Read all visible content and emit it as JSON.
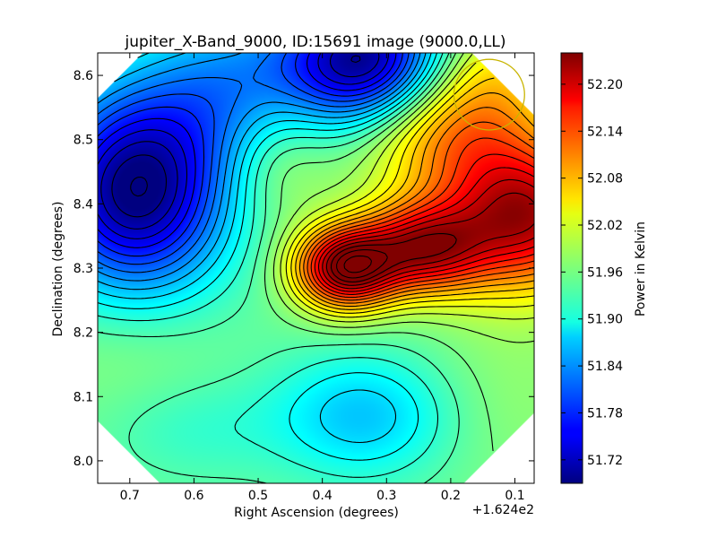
{
  "chart_data": {
    "type": "heatmap",
    "title": "jupiter_X-Band_9000, ID:15691 image (9000.0,LL)",
    "xlabel": "Right Ascension (degrees)",
    "ylabel": "Declination (degrees)",
    "x_offset_label": "+1.624e2",
    "xlim": [
      0.75,
      0.07
    ],
    "ylim": [
      7.965,
      8.635
    ],
    "x_ticks": [
      0.7,
      0.6,
      0.5,
      0.4,
      0.3,
      0.2,
      0.1
    ],
    "x_tick_labels": [
      "0.7",
      "0.6",
      "0.5",
      "0.4",
      "0.3",
      "0.2",
      "0.1"
    ],
    "y_ticks": [
      8.0,
      8.1,
      8.2,
      8.3,
      8.4,
      8.5,
      8.6
    ],
    "y_tick_labels": [
      "8.0",
      "8.1",
      "8.2",
      "8.3",
      "8.4",
      "8.5",
      "8.6"
    ],
    "colorbar": {
      "label": "Power in Kelvin",
      "colormap": "jet",
      "range": [
        51.69,
        52.24
      ],
      "ticks": [
        51.72,
        51.78,
        51.84,
        51.9,
        51.96,
        52.02,
        52.08,
        52.14,
        52.2
      ],
      "tick_labels": [
        "51.72",
        "51.78",
        "51.84",
        "51.90",
        "51.96",
        "52.02",
        "52.08",
        "52.14",
        "52.20"
      ]
    },
    "beam_circle": {
      "x": 0.14,
      "y": 8.57,
      "radius": 0.055,
      "color": "#c8b400"
    },
    "contour_interval": 0.02,
    "field_components": {
      "base": 51.955,
      "gaussians": [
        {
          "x": 0.365,
          "y": 8.3,
          "sx": 0.055,
          "sy": 0.045,
          "amp": 0.28
        },
        {
          "x": 0.245,
          "y": 8.33,
          "sx": 0.07,
          "sy": 0.05,
          "amp": 0.23
        },
        {
          "x": 0.08,
          "y": 8.38,
          "sx": 0.09,
          "sy": 0.08,
          "amp": 0.25
        },
        {
          "x": 0.2,
          "y": 8.52,
          "sx": 0.1,
          "sy": 0.08,
          "amp": 0.15
        },
        {
          "x": 0.13,
          "y": 8.62,
          "sx": 0.07,
          "sy": 0.06,
          "amp": 0.05
        },
        {
          "x": 0.69,
          "y": 8.42,
          "sx": 0.1,
          "sy": 0.11,
          "amp": -0.27
        },
        {
          "x": 0.33,
          "y": 8.62,
          "sx": 0.09,
          "sy": 0.07,
          "amp": -0.27
        },
        {
          "x": 0.54,
          "y": 8.58,
          "sx": 0.1,
          "sy": 0.09,
          "amp": -0.1
        },
        {
          "x": 0.47,
          "y": 8.47,
          "sx": 0.06,
          "sy": 0.07,
          "amp": 0.05
        },
        {
          "x": 0.335,
          "y": 8.07,
          "sx": 0.1,
          "sy": 0.07,
          "amp": -0.09
        },
        {
          "x": 0.6,
          "y": 8.05,
          "sx": 0.1,
          "sy": 0.06,
          "amp": -0.03
        },
        {
          "x": 0.7,
          "y": 8.17,
          "sx": 0.1,
          "sy": 0.07,
          "amp": 0.02
        },
        {
          "x": 0.12,
          "y": 8.1,
          "sx": 0.1,
          "sy": 0.1,
          "amp": 0.02
        }
      ]
    }
  }
}
